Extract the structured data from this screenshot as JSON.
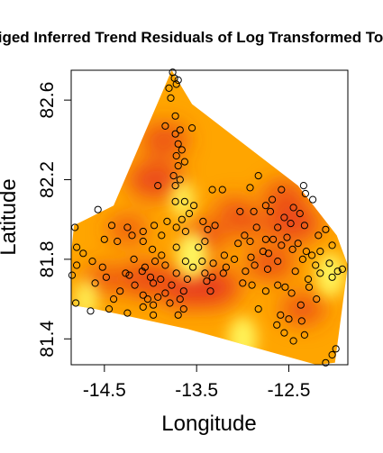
{
  "chart_data": {
    "type": "scatter",
    "title": "Kriged Inferred Trend Residuals of Log Transformed Total",
    "xlabel": "Longitude",
    "ylabel": "Latitude",
    "xlim": [
      -14.86,
      -11.86
    ],
    "ylim": [
      81.27,
      82.75
    ],
    "x_ticks": [
      -14.5,
      -13.5,
      -12.5
    ],
    "x_tick_labels": [
      "-14.5",
      "-13.5",
      "-12.5"
    ],
    "y_ticks": [
      81.4,
      81.8,
      82.2,
      82.6
    ],
    "y_tick_labels": [
      "81.4",
      "81.8",
      "82.2",
      "82.6"
    ],
    "grid": false,
    "legend": "none",
    "surface": {
      "type": "kriged residual surface",
      "color_low": "#ffff66",
      "color_mid": "#ffa500",
      "color_high": "#e8381c",
      "hull": [
        [
          -14.83,
          81.97
        ],
        [
          -14.4,
          82.07
        ],
        [
          -13.77,
          82.75
        ],
        [
          -13.55,
          82.58
        ],
        [
          -12.4,
          82.17
        ],
        [
          -11.98,
          81.92
        ],
        [
          -11.86,
          81.77
        ],
        [
          -12.0,
          81.28
        ],
        [
          -12.2,
          81.27
        ],
        [
          -13.6,
          81.45
        ],
        [
          -14.6,
          81.55
        ],
        [
          -14.86,
          81.57
        ],
        [
          -14.86,
          81.83
        ]
      ],
      "hotspots": [
        {
          "x": -13.95,
          "y": 82.2,
          "strength": 0.9
        },
        {
          "x": -13.85,
          "y": 82.4,
          "strength": 0.7
        },
        {
          "x": -14.05,
          "y": 81.7,
          "strength": 0.8
        },
        {
          "x": -13.62,
          "y": 81.65,
          "strength": 0.9
        },
        {
          "x": -13.35,
          "y": 81.66,
          "strength": 1.0
        },
        {
          "x": -13.4,
          "y": 81.92,
          "strength": 0.6
        },
        {
          "x": -12.45,
          "y": 81.98,
          "strength": 0.9
        },
        {
          "x": -12.55,
          "y": 82.12,
          "strength": 0.6
        },
        {
          "x": -12.95,
          "y": 81.98,
          "strength": 0.5
        },
        {
          "x": -12.7,
          "y": 81.78,
          "strength": 0.7
        },
        {
          "x": -12.35,
          "y": 81.55,
          "strength": 0.6
        },
        {
          "x": -14.5,
          "y": 81.7,
          "strength": 0.5
        },
        {
          "x": -14.25,
          "y": 81.95,
          "strength": 0.45
        },
        {
          "x": -13.1,
          "y": 82.05,
          "strength": 0.4
        }
      ],
      "coolspots": [
        {
          "x": -13.55,
          "y": 81.82,
          "strength": 0.9
        },
        {
          "x": -13.65,
          "y": 82.1,
          "strength": 0.6
        },
        {
          "x": -13.0,
          "y": 81.4,
          "strength": 0.8
        },
        {
          "x": -12.05,
          "y": 81.72,
          "strength": 0.8
        },
        {
          "x": -14.7,
          "y": 81.6,
          "strength": 0.6
        },
        {
          "x": -12.3,
          "y": 82.3,
          "strength": 0.4
        }
      ]
    },
    "points": [
      [
        -13.76,
        82.74
      ],
      [
        -13.74,
        82.71
      ],
      [
        -13.7,
        82.7
      ],
      [
        -13.8,
        82.66
      ],
      [
        -13.72,
        82.68
      ],
      [
        -13.78,
        82.61
      ],
      [
        -13.73,
        82.52
      ],
      [
        -13.84,
        82.47
      ],
      [
        -13.68,
        82.45
      ],
      [
        -13.73,
        82.43
      ],
      [
        -13.55,
        82.46
      ],
      [
        -13.7,
        82.38
      ],
      [
        -13.66,
        82.35
      ],
      [
        -13.72,
        82.32
      ],
      [
        -13.63,
        82.29
      ],
      [
        -13.7,
        82.27
      ],
      [
        -13.75,
        82.22
      ],
      [
        -13.68,
        82.2
      ],
      [
        -13.73,
        82.17
      ],
      [
        -12.83,
        82.22
      ],
      [
        -12.34,
        82.17
      ],
      [
        -13.92,
        82.17
      ],
      [
        -13.33,
        82.15
      ],
      [
        -13.22,
        82.15
      ],
      [
        -12.92,
        82.16
      ],
      [
        -12.58,
        82.15
      ],
      [
        -12.32,
        82.13
      ],
      [
        -12.68,
        82.1
      ],
      [
        -13.73,
        82.09
      ],
      [
        -13.63,
        82.09
      ],
      [
        -13.53,
        82.07
      ],
      [
        -12.75,
        82.07
      ],
      [
        -12.24,
        82.1
      ],
      [
        -12.45,
        82.06
      ],
      [
        -14.57,
        82.05
      ],
      [
        -13.58,
        82.03
      ],
      [
        -13.03,
        82.04
      ],
      [
        -12.88,
        82.04
      ],
      [
        -12.7,
        82.04
      ],
      [
        -12.55,
        82.01
      ],
      [
        -12.38,
        82.03
      ],
      [
        -13.66,
        82.0
      ],
      [
        -13.82,
        81.99
      ],
      [
        -13.43,
        81.99
      ],
      [
        -12.48,
        81.98
      ],
      [
        -14.42,
        81.97
      ],
      [
        -14.08,
        81.94
      ],
      [
        -13.72,
        81.96
      ],
      [
        -13.3,
        81.97
      ],
      [
        -12.85,
        81.96
      ],
      [
        -12.62,
        81.96
      ],
      [
        -12.33,
        81.97
      ],
      [
        -14.82,
        81.96
      ],
      [
        -14.25,
        81.96
      ],
      [
        -13.96,
        81.97
      ],
      [
        -13.38,
        81.95
      ],
      [
        -12.1,
        81.95
      ],
      [
        -14.2,
        81.92
      ],
      [
        -13.88,
        81.92
      ],
      [
        -13.62,
        81.94
      ],
      [
        -12.98,
        81.92
      ],
      [
        -12.75,
        81.9
      ],
      [
        -12.52,
        81.91
      ],
      [
        -12.18,
        81.92
      ],
      [
        -14.5,
        81.9
      ],
      [
        -14.36,
        81.89
      ],
      [
        -14.08,
        81.89
      ],
      [
        -13.41,
        81.89
      ],
      [
        -13.05,
        81.88
      ],
      [
        -12.92,
        81.89
      ],
      [
        -12.67,
        81.9
      ],
      [
        -12.4,
        81.88
      ],
      [
        -14.8,
        81.86
      ],
      [
        -13.98,
        81.85
      ],
      [
        -13.72,
        81.86
      ],
      [
        -13.48,
        81.86
      ],
      [
        -12.58,
        81.87
      ],
      [
        -12.03,
        81.87
      ],
      [
        -14.73,
        81.83
      ],
      [
        -12.78,
        81.84
      ],
      [
        -12.46,
        81.85
      ],
      [
        -12.31,
        81.84
      ],
      [
        -13.88,
        81.82
      ],
      [
        -13.2,
        81.82
      ],
      [
        -12.91,
        81.81
      ],
      [
        -12.72,
        81.83
      ],
      [
        -12.25,
        81.82
      ],
      [
        -12.16,
        81.84
      ],
      [
        -14.63,
        81.79
      ],
      [
        -14.18,
        81.8
      ],
      [
        -13.95,
        81.79
      ],
      [
        -13.62,
        81.79
      ],
      [
        -13.44,
        81.79
      ],
      [
        -13.32,
        81.78
      ],
      [
        -13.09,
        81.8
      ],
      [
        -12.87,
        81.77
      ],
      [
        -12.62,
        81.79
      ],
      [
        -12.35,
        81.8
      ],
      [
        -12.06,
        81.78
      ],
      [
        -14.8,
        81.77
      ],
      [
        -14.52,
        81.76
      ],
      [
        -14.06,
        81.76
      ],
      [
        -13.84,
        81.77
      ],
      [
        -13.54,
        81.76
      ],
      [
        -13.18,
        81.76
      ],
      [
        -12.73,
        81.75
      ],
      [
        -12.21,
        81.77
      ],
      [
        -11.92,
        81.75
      ],
      [
        -14.27,
        81.73
      ],
      [
        -14.09,
        81.74
      ],
      [
        -13.72,
        81.73
      ],
      [
        -13.41,
        81.73
      ],
      [
        -13.21,
        81.73
      ],
      [
        -12.97,
        81.74
      ],
      [
        -12.43,
        81.74
      ],
      [
        -12.16,
        81.73
      ],
      [
        -11.97,
        81.74
      ],
      [
        -14.85,
        81.72
      ],
      [
        -14.48,
        81.71
      ],
      [
        -14.23,
        81.72
      ],
      [
        -14.0,
        81.71
      ],
      [
        -13.89,
        81.7
      ],
      [
        -13.6,
        81.7
      ],
      [
        -13.33,
        81.71
      ],
      [
        -12.29,
        81.7
      ],
      [
        -12.03,
        81.71
      ],
      [
        -14.6,
        81.68
      ],
      [
        -14.17,
        81.67
      ],
      [
        -13.97,
        81.68
      ],
      [
        -13.77,
        81.67
      ],
      [
        -13.39,
        81.69
      ],
      [
        -13.0,
        81.68
      ],
      [
        -12.9,
        81.67
      ],
      [
        -12.62,
        81.67
      ],
      [
        -12.54,
        81.66
      ],
      [
        -12.28,
        81.66
      ],
      [
        -14.33,
        81.64
      ],
      [
        -14.08,
        81.62
      ],
      [
        -13.92,
        81.61
      ],
      [
        -13.84,
        81.63
      ],
      [
        -13.64,
        81.64
      ],
      [
        -13.35,
        81.64
      ],
      [
        -12.75,
        81.64
      ],
      [
        -12.47,
        81.63
      ],
      [
        -14.4,
        81.6
      ],
      [
        -14.03,
        81.6
      ],
      [
        -13.79,
        81.58
      ],
      [
        -13.68,
        81.6
      ],
      [
        -12.2,
        81.6
      ],
      [
        -14.81,
        81.58
      ],
      [
        -14.08,
        81.56
      ],
      [
        -13.97,
        81.57
      ],
      [
        -13.64,
        81.55
      ],
      [
        -12.37,
        81.57
      ],
      [
        -14.65,
        81.54
      ],
      [
        -14.45,
        81.55
      ],
      [
        -14.25,
        81.53
      ],
      [
        -13.97,
        81.52
      ],
      [
        -13.7,
        81.52
      ],
      [
        -12.83,
        81.55
      ],
      [
        -12.59,
        81.52
      ],
      [
        -12.5,
        81.5
      ],
      [
        -12.36,
        81.49
      ],
      [
        -12.63,
        81.47
      ],
      [
        -12.55,
        81.43
      ],
      [
        -12.33,
        81.42
      ],
      [
        -12.45,
        81.39
      ],
      [
        -11.99,
        81.35
      ],
      [
        -12.03,
        81.32
      ],
      [
        -12.1,
        81.28
      ]
    ]
  }
}
